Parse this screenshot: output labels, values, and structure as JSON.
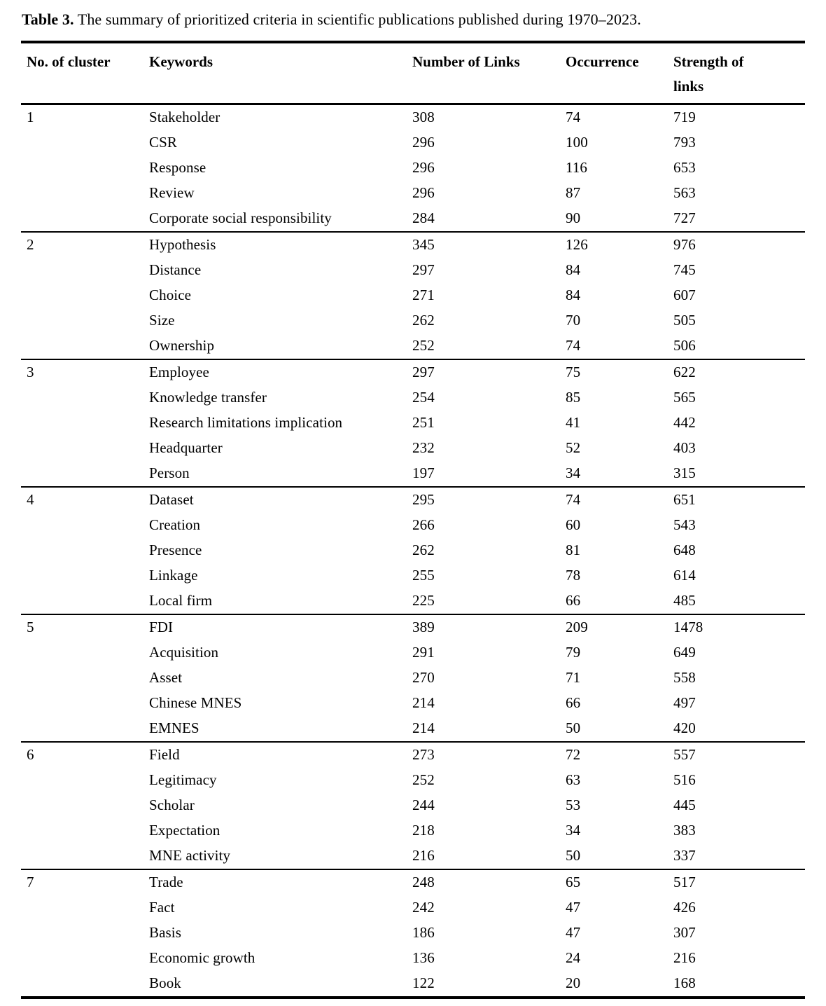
{
  "caption": {
    "label": "Table 3.",
    "text": "The summary of prioritized criteria in scientific publications published during 1970–2023."
  },
  "columns": [
    "No. of cluster",
    "Keywords",
    "Number of Links",
    "Occurrence",
    "Strength of links"
  ],
  "clusters": [
    {
      "no": "1",
      "rows": [
        {
          "keyword": "Stakeholder",
          "links": "308",
          "occurrence": "74",
          "strength": "719"
        },
        {
          "keyword": "CSR",
          "links": "296",
          "occurrence": "100",
          "strength": "793"
        },
        {
          "keyword": "Response",
          "links": "296",
          "occurrence": "116",
          "strength": "653"
        },
        {
          "keyword": "Review",
          "links": "296",
          "occurrence": "87",
          "strength": "563"
        },
        {
          "keyword": "Corporate social responsibility",
          "links": "284",
          "occurrence": "90",
          "strength": "727"
        }
      ]
    },
    {
      "no": "2",
      "rows": [
        {
          "keyword": "Hypothesis",
          "links": "345",
          "occurrence": "126",
          "strength": "976"
        },
        {
          "keyword": "Distance",
          "links": "297",
          "occurrence": "84",
          "strength": "745"
        },
        {
          "keyword": "Choice",
          "links": "271",
          "occurrence": "84",
          "strength": "607"
        },
        {
          "keyword": "Size",
          "links": "262",
          "occurrence": "70",
          "strength": "505"
        },
        {
          "keyword": "Ownership",
          "links": "252",
          "occurrence": "74",
          "strength": "506"
        }
      ]
    },
    {
      "no": "3",
      "rows": [
        {
          "keyword": "Employee",
          "links": "297",
          "occurrence": "75",
          "strength": "622"
        },
        {
          "keyword": "Knowledge transfer",
          "links": "254",
          "occurrence": "85",
          "strength": "565"
        },
        {
          "keyword": "Research limitations implication",
          "links": "251",
          "occurrence": "41",
          "strength": "442"
        },
        {
          "keyword": "Headquarter",
          "links": "232",
          "occurrence": "52",
          "strength": "403"
        },
        {
          "keyword": "Person",
          "links": "197",
          "occurrence": "34",
          "strength": "315"
        }
      ]
    },
    {
      "no": "4",
      "rows": [
        {
          "keyword": "Dataset",
          "links": "295",
          "occurrence": "74",
          "strength": "651"
        },
        {
          "keyword": "Creation",
          "links": "266",
          "occurrence": "60",
          "strength": "543"
        },
        {
          "keyword": "Presence",
          "links": "262",
          "occurrence": "81",
          "strength": "648"
        },
        {
          "keyword": "Linkage",
          "links": "255",
          "occurrence": "78",
          "strength": "614"
        },
        {
          "keyword": "Local firm",
          "links": "225",
          "occurrence": "66",
          "strength": "485"
        }
      ]
    },
    {
      "no": "5",
      "rows": [
        {
          "keyword": "FDI",
          "links": "389",
          "occurrence": "209",
          "strength": "1478"
        },
        {
          "keyword": "Acquisition",
          "links": "291",
          "occurrence": "79",
          "strength": "649"
        },
        {
          "keyword": "Asset",
          "links": "270",
          "occurrence": "71",
          "strength": "558"
        },
        {
          "keyword": "Chinese MNES",
          "links": "214",
          "occurrence": "66",
          "strength": "497"
        },
        {
          "keyword": "EMNES",
          "links": "214",
          "occurrence": "50",
          "strength": "420"
        }
      ]
    },
    {
      "no": "6",
      "rows": [
        {
          "keyword": "Field",
          "links": "273",
          "occurrence": "72",
          "strength": "557"
        },
        {
          "keyword": "Legitimacy",
          "links": "252",
          "occurrence": "63",
          "strength": "516"
        },
        {
          "keyword": "Scholar",
          "links": "244",
          "occurrence": "53",
          "strength": "445"
        },
        {
          "keyword": "Expectation",
          "links": "218",
          "occurrence": "34",
          "strength": "383"
        },
        {
          "keyword": "MNE activity",
          "links": "216",
          "occurrence": "50",
          "strength": "337"
        }
      ]
    },
    {
      "no": "7",
      "rows": [
        {
          "keyword": "Trade",
          "links": "248",
          "occurrence": "65",
          "strength": "517"
        },
        {
          "keyword": "Fact",
          "links": "242",
          "occurrence": "47",
          "strength": "426"
        },
        {
          "keyword": "Basis",
          "links": "186",
          "occurrence": "47",
          "strength": "307"
        },
        {
          "keyword": "Economic growth",
          "links": "136",
          "occurrence": "24",
          "strength": "216"
        },
        {
          "keyword": "Book",
          "links": "122",
          "occurrence": "20",
          "strength": "168"
        }
      ]
    }
  ]
}
